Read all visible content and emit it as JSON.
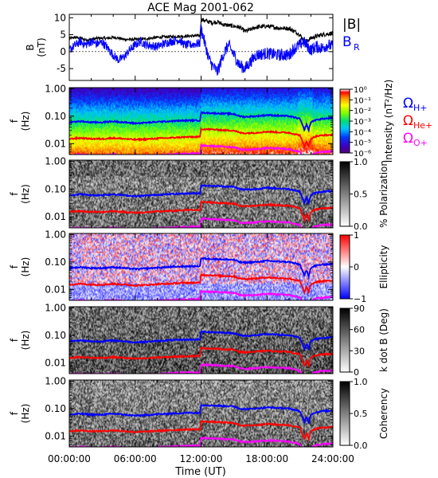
{
  "chart_data": {
    "type": "multi-panel spectrogram",
    "title": "ACE Mag 2001-062",
    "x_axis": {
      "label": "Time (UT)",
      "range_hours": [
        0,
        24
      ],
      "ticks": [
        {
          "hour": 0,
          "label": "00:00:00"
        },
        {
          "hour": 6,
          "label": "06:00:00"
        },
        {
          "hour": 12,
          "label": "12:00:00"
        },
        {
          "hour": 18,
          "label": "18:00:00"
        },
        {
          "hour": 24,
          "label": "24:00:00"
        }
      ]
    },
    "panels": [
      {
        "id": "field",
        "type": "line",
        "ylabel": "B",
        "yunit": "(nT)",
        "ylim": [
          -8.5,
          11
        ],
        "yticks": [
          {
            "v": 10,
            "label": "10"
          },
          {
            "v": 5,
            "label": "5"
          },
          {
            "v": 0,
            "label": "0"
          },
          {
            "v": -5,
            "label": "-5"
          }
        ],
        "series": [
          {
            "name": "|B|",
            "color": "#000000",
            "hours": [
              0,
              0.5,
              1,
              1.5,
              2,
              2.5,
              3,
              3.5,
              4,
              4.5,
              5,
              6,
              7,
              8,
              9,
              10,
              11,
              11.9,
              12,
              12.5,
              13,
              13.5,
              14,
              15,
              15.5,
              16,
              16.5,
              17,
              18,
              19,
              20,
              20.5,
              21,
              21.3,
              21.6,
              22,
              22.5,
              23,
              23.5,
              24
            ],
            "values": [
              3.8,
              4.2,
              4.0,
              3.5,
              3.6,
              3.9,
              4.0,
              3.9,
              4.2,
              4.0,
              3.6,
              3.6,
              3.8,
              4.2,
              4.4,
              4.5,
              4.6,
              4.7,
              9.5,
              9.0,
              8.5,
              8.8,
              8.0,
              7.5,
              7.2,
              6.0,
              6.5,
              7.2,
              7.5,
              7.0,
              6.8,
              6.0,
              5.0,
              3.5,
              3.0,
              4.0,
              4.5,
              5.0,
              5.2,
              5.5
            ]
          },
          {
            "name": "B_R",
            "color": "#0000ff",
            "hours": [
              0,
              0.5,
              1,
              1.5,
              2,
              2.5,
              3,
              3.5,
              4,
              4.5,
              5,
              5.5,
              6,
              6.5,
              7,
              8,
              9,
              10,
              10.5,
              11,
              11.9,
              12,
              12.3,
              12.7,
              13,
              13.5,
              14,
              14.5,
              15,
              15.5,
              16,
              16.5,
              17,
              18,
              19,
              20,
              20.5,
              21,
              21.3,
              21.6,
              22,
              22.5,
              23,
              23.5,
              24
            ],
            "values": [
              0.5,
              1.8,
              3.0,
              2.0,
              3.0,
              2.2,
              2.8,
              1.0,
              -1.0,
              -2.5,
              -1.5,
              0.5,
              2.0,
              3.0,
              2.0,
              1.5,
              2.8,
              3.5,
              2.0,
              2.0,
              2.5,
              7.0,
              3.0,
              -2.0,
              -4.0,
              -6.0,
              -1.0,
              2.0,
              -1.0,
              -4.0,
              -5.0,
              -3.0,
              -1.0,
              -0.5,
              -1.0,
              -1.0,
              1.0,
              2.0,
              3.0,
              2.0,
              0.5,
              1.5,
              1.0,
              2.0,
              1.5
            ]
          }
        ],
        "legend": [
          "|B|",
          "B_R"
        ]
      },
      {
        "id": "intensity",
        "type": "heatmap",
        "ylabel": "f",
        "yunit": "(Hz)",
        "ylim_log": [
          0.004,
          1.1
        ],
        "yticks": [
          "1.00",
          "0.10",
          "0.01"
        ],
        "colorbar": {
          "label": "Intensity (nT²/Hz)",
          "ticks": [
            "10⁰",
            "10⁻¹",
            "10⁻²",
            "10⁻³",
            "10⁻⁴",
            "10⁻⁵",
            "10⁻⁶"
          ],
          "scale": "rainbow"
        },
        "legend": [
          "ΩH+",
          "ΩHe+",
          "ΩO+"
        ]
      },
      {
        "id": "polarization",
        "type": "heatmap",
        "ylabel": "f",
        "yunit": "(Hz)",
        "yticks": [
          "1.00",
          "0.10",
          "0.01"
        ],
        "colorbar": {
          "label": "% Polarization",
          "ticks": [
            "1.0",
            "0.5",
            "0.0"
          ],
          "scale": "gray"
        }
      },
      {
        "id": "ellipticity",
        "type": "heatmap",
        "ylabel": "f",
        "yunit": "(Hz)",
        "yticks": [
          "1.00",
          "0.10",
          "0.01"
        ],
        "colorbar": {
          "label": "Ellipticity",
          "ticks": [
            "1",
            "0",
            "−1"
          ],
          "scale": "red-white-blue"
        }
      },
      {
        "id": "kdotb",
        "type": "heatmap",
        "ylabel": "f",
        "yunit": "(Hz)",
        "yticks": [
          "1.00",
          "0.10",
          "0.01"
        ],
        "colorbar": {
          "label": "k dot B (Deg)",
          "ticks": [
            "90",
            "60",
            "30",
            "0"
          ],
          "scale": "gray"
        }
      },
      {
        "id": "coherency",
        "type": "heatmap",
        "ylabel": "f",
        "yunit": "(Hz)",
        "yticks": [
          "1.00",
          "0.10",
          "0.01"
        ],
        "colorbar": {
          "label": "Coherency",
          "ticks": [
            "1.0",
            "0.5",
            "0.0"
          ],
          "scale": "gray"
        }
      }
    ],
    "gyrofrequency_lines": [
      {
        "name": "ΩH+",
        "color": "#0000ff",
        "hours": [
          0,
          1,
          2,
          3,
          4,
          5,
          6,
          7,
          8,
          9,
          10,
          11,
          11.9,
          12,
          13,
          14,
          15,
          15.5,
          16,
          17,
          18,
          19,
          20,
          21,
          21.2,
          21.4,
          21.6,
          21.8,
          22,
          22.3,
          22.6,
          23,
          24
        ],
        "values_hz": [
          0.06,
          0.065,
          0.06,
          0.06,
          0.065,
          0.06,
          0.055,
          0.058,
          0.062,
          0.065,
          0.068,
          0.07,
          0.07,
          0.135,
          0.13,
          0.125,
          0.12,
          0.1,
          0.095,
          0.1,
          0.11,
          0.105,
          0.1,
          0.08,
          0.05,
          0.03,
          0.05,
          0.03,
          0.06,
          0.07,
          0.075,
          0.08,
          0.085
        ]
      },
      {
        "name": "ΩHe+",
        "color": "#ff0000",
        "hours": [
          0,
          1,
          2,
          3,
          4,
          5,
          6,
          7,
          8,
          9,
          10,
          11,
          11.9,
          12,
          13,
          14,
          15,
          15.5,
          16,
          17,
          18,
          19,
          20,
          21,
          21.2,
          21.4,
          21.6,
          21.8,
          22,
          22.3,
          22.6,
          23,
          24
        ],
        "values_hz": [
          0.015,
          0.016,
          0.015,
          0.015,
          0.016,
          0.015,
          0.014,
          0.0145,
          0.0155,
          0.016,
          0.017,
          0.0175,
          0.0175,
          0.034,
          0.033,
          0.031,
          0.03,
          0.025,
          0.024,
          0.025,
          0.0275,
          0.026,
          0.025,
          0.02,
          0.0125,
          0.0075,
          0.0125,
          0.0075,
          0.015,
          0.0175,
          0.019,
          0.02,
          0.021
        ]
      },
      {
        "name": "ΩO+",
        "color": "#ff00ff",
        "hours": [
          0,
          1,
          2,
          3,
          4,
          5,
          6,
          7,
          8,
          9,
          10,
          11,
          11.9,
          12,
          13,
          14,
          15,
          15.5,
          16,
          17,
          18,
          19,
          20,
          21,
          21.2,
          21.4,
          21.6,
          21.8,
          22,
          22.3,
          22.6,
          23,
          24
        ],
        "values_hz": [
          0.0038,
          0.004,
          0.0038,
          0.0038,
          0.004,
          0.0038,
          0.0035,
          0.0036,
          0.0039,
          0.004,
          0.0043,
          0.0044,
          0.0044,
          0.0085,
          0.0082,
          0.0078,
          0.0075,
          0.0063,
          0.006,
          0.0063,
          0.0069,
          0.0066,
          0.0063,
          0.005,
          0.0032,
          0.0019,
          0.0032,
          0.0019,
          0.0038,
          0.0044,
          0.0047,
          0.005,
          0.0053
        ]
      }
    ]
  }
}
